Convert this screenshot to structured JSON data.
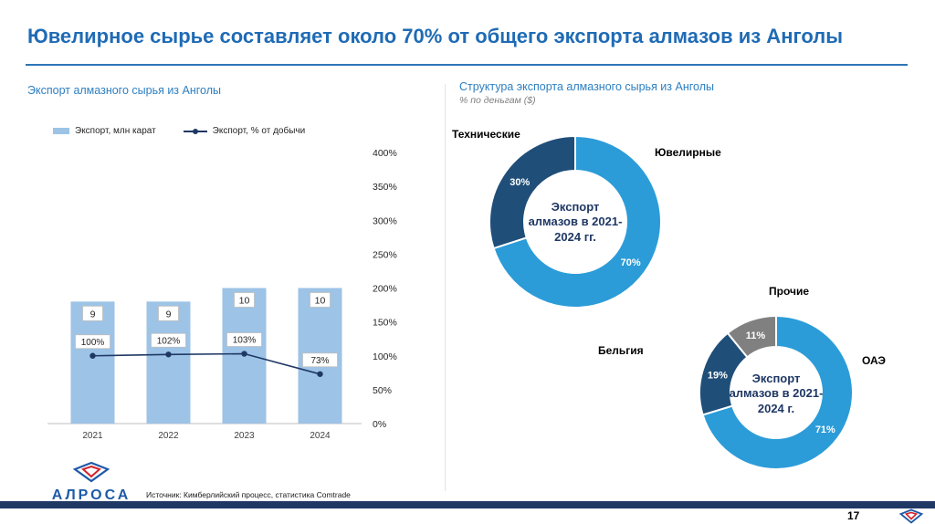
{
  "slide": {
    "title": "Ювелирное сырье составляет около 70% от общего экспорта алмазов из Анголы",
    "page_number": "17",
    "source": "Источник: Кимберлийский процесс, статистика Comtrade",
    "logo_text": "АЛРОСА"
  },
  "left_section": {
    "title": "Экспорт алмазного сырья из Анголы",
    "legend": [
      {
        "label": "Экспорт, млн карат"
      },
      {
        "label": "Экспорт, % от добычи"
      }
    ]
  },
  "right_section": {
    "title": "Структура экспорта алмазного сырья из Анголы",
    "subtitle": "% по деньгам ($)"
  },
  "chart_data": [
    {
      "type": "bar",
      "title": "Экспорт алмазного сырья из Анголы",
      "categories": [
        "2021",
        "2022",
        "2023",
        "2024"
      ],
      "series": [
        {
          "name": "Экспорт, млн карат",
          "kind": "bar",
          "values": [
            9,
            9,
            10,
            10
          ],
          "color": "#9DC3E6"
        },
        {
          "name": "Экспорт, % от добычи",
          "kind": "line",
          "values": [
            100,
            102,
            103,
            73
          ],
          "labels": [
            "100%",
            "102%",
            "103%",
            "73%"
          ],
          "color": "#1F3864"
        }
      ],
      "right_axis": {
        "min": 0,
        "max": 400,
        "step": 50,
        "tick_labels": [
          "0%",
          "50%",
          "100%",
          "150%",
          "200%",
          "250%",
          "300%",
          "350%",
          "400%"
        ]
      },
      "bar_axis": {
        "min": 0,
        "max": 20
      },
      "legend_position": "top",
      "grid": false
    },
    {
      "type": "donut",
      "center_label": "Экспорт алмазов в 2021-2024 гг.",
      "slices": [
        {
          "name": "Ювелирные",
          "value": 70,
          "label": "70%",
          "color": "#2B9CD8"
        },
        {
          "name": "Технические",
          "value": 30,
          "label": "30%",
          "color": "#1F4E79"
        }
      ]
    },
    {
      "type": "donut",
      "center_label": "Экспорт алмазов в 2021-2024 г.",
      "slices": [
        {
          "name": "ОАЭ",
          "value": 71,
          "label": "71%",
          "color": "#2B9CD8"
        },
        {
          "name": "Бельгия",
          "value": 19,
          "label": "19%",
          "color": "#1F4E79"
        },
        {
          "name": "Прочие",
          "value": 11,
          "label": "11%",
          "color": "#808080"
        }
      ]
    }
  ]
}
